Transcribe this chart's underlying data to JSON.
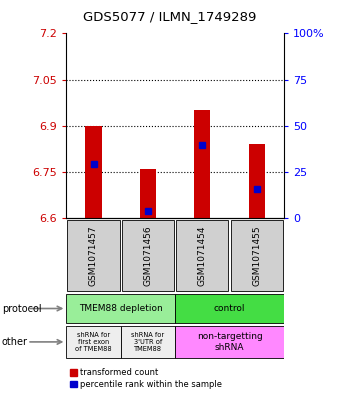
{
  "title": "GDS5077 / ILMN_1749289",
  "samples": [
    "GSM1071457",
    "GSM1071456",
    "GSM1071454",
    "GSM1071455"
  ],
  "red_bar_bottoms": [
    6.6,
    6.6,
    6.6,
    6.6
  ],
  "red_bar_tops": [
    6.9,
    6.76,
    6.95,
    6.84
  ],
  "blue_marker_vals": [
    6.775,
    6.623,
    6.838,
    6.695
  ],
  "ylim": [
    6.6,
    7.2
  ],
  "y_left_ticks": [
    6.6,
    6.75,
    6.9,
    7.05,
    7.2
  ],
  "y_right_ticks": [
    0,
    25,
    50,
    75,
    100
  ],
  "y_right_labels": [
    "0",
    "25",
    "50",
    "75",
    "100%"
  ],
  "dotted_lines": [
    6.75,
    6.9,
    7.05
  ],
  "bar_color": "#cc0000",
  "blue_color": "#0000cc",
  "label_color_left": "#cc0000",
  "label_color_right": "#0000ff",
  "bg_color": "#ffffff",
  "protocol_left_color": "#99ee99",
  "protocol_right_color": "#44dd44",
  "other_gray": "#eeeeee",
  "other_pink": "#ff88ff",
  "legend_red": "transformed count",
  "legend_blue": "percentile rank within the sample"
}
